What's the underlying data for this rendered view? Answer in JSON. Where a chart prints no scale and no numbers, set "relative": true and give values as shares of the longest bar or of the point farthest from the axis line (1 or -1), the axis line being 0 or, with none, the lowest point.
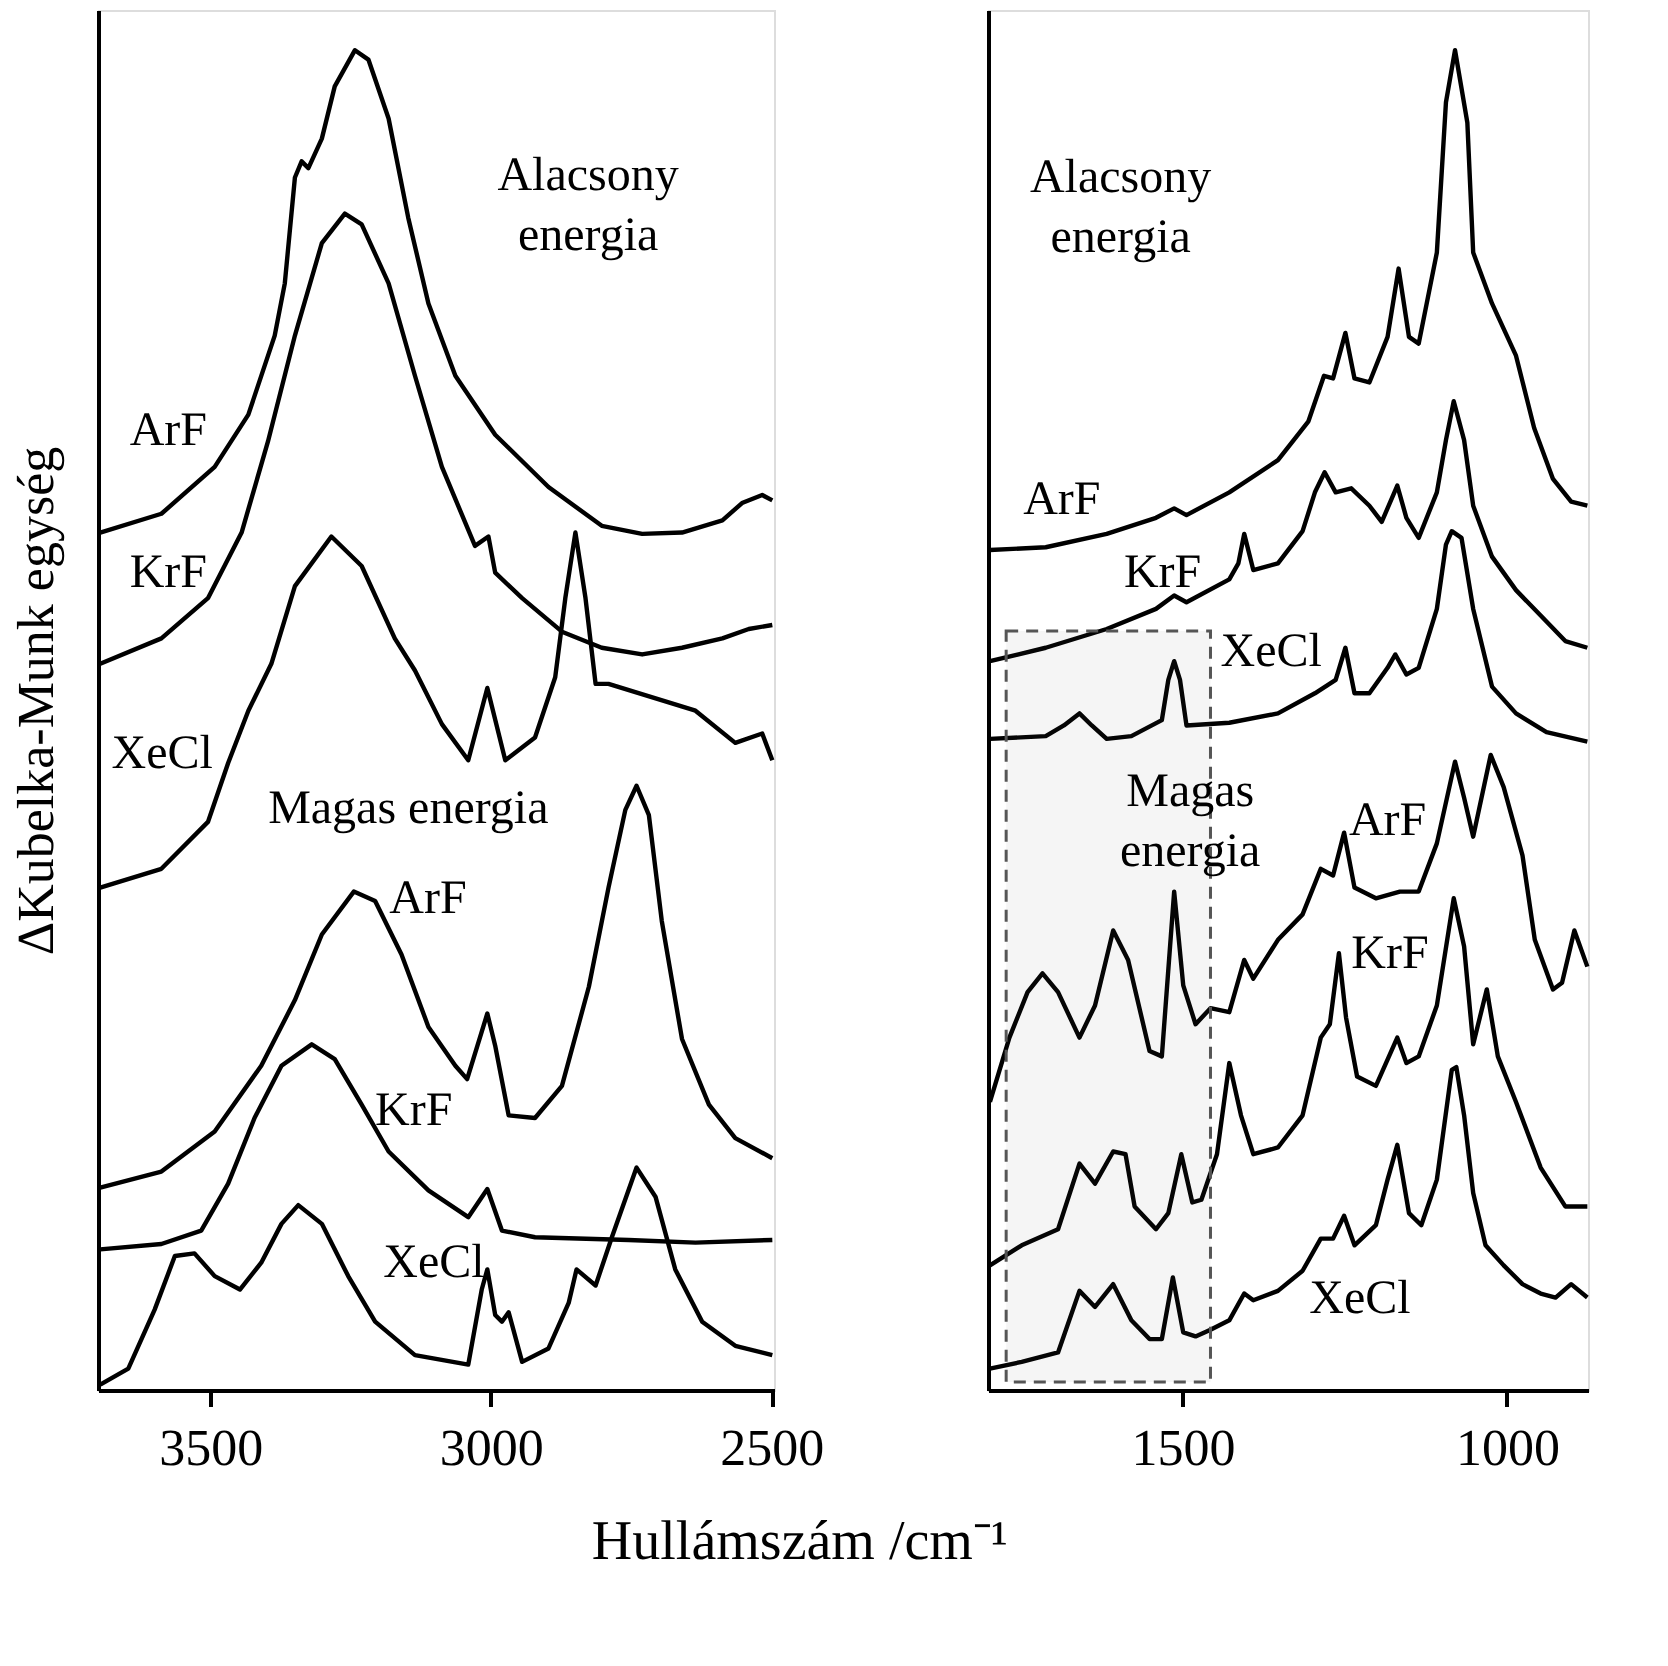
{
  "chart_data": [
    {
      "type": "line",
      "relative": true,
      "tick_labels": "x",
      "ylabel": "ΔKubelka-Munk egység",
      "xlabel": "Hullámszám /cm⁻¹",
      "xlim": [
        3700,
        2495
      ],
      "xticks": [
        3500,
        3000,
        2500
      ],
      "grid": false,
      "series": [
        {
          "color": "#000000",
          "x": [
            3696,
            3587,
            3492,
            3432,
            3385,
            3367,
            3349,
            3337,
            3325,
            3301,
            3278,
            3242,
            3218,
            3182,
            3147,
            3111,
            3063,
            2992,
            2897,
            2802,
            2730,
            2659,
            2587,
            2552,
            2516,
            2498
          ],
          "values": [
            0.64,
            0.654,
            0.689,
            0.728,
            0.787,
            0.826,
            0.905,
            0.917,
            0.912,
            0.934,
            0.973,
            1.0,
            0.993,
            0.949,
            0.875,
            0.811,
            0.757,
            0.713,
            0.674,
            0.645,
            0.639,
            0.64,
            0.649,
            0.662,
            0.668,
            0.664
          ]
        },
        {
          "color": "#000000",
          "x": [
            3696,
            3587,
            3504,
            3444,
            3397,
            3349,
            3301,
            3260,
            3230,
            3182,
            3135,
            3087,
            3028,
            3004,
            2992,
            2944,
            2873,
            2802,
            2730,
            2659,
            2587,
            2540,
            2498
          ],
          "values": [
            0.542,
            0.561,
            0.591,
            0.64,
            0.708,
            0.787,
            0.856,
            0.878,
            0.87,
            0.826,
            0.757,
            0.689,
            0.63,
            0.637,
            0.61,
            0.591,
            0.566,
            0.554,
            0.549,
            0.554,
            0.561,
            0.568,
            0.571
          ]
        },
        {
          "color": "#000000",
          "x": [
            3696,
            3587,
            3504,
            3468,
            3432,
            3391,
            3349,
            3284,
            3230,
            3171,
            3135,
            3087,
            3040,
            3006,
            2974,
            2921,
            2885,
            2867,
            2849,
            2831,
            2813,
            2790,
            2635,
            2564,
            2516,
            2498
          ],
          "values": [
            0.375,
            0.389,
            0.424,
            0.468,
            0.507,
            0.542,
            0.6,
            0.637,
            0.615,
            0.561,
            0.537,
            0.497,
            0.47,
            0.524,
            0.47,
            0.487,
            0.532,
            0.591,
            0.64,
            0.591,
            0.527,
            0.527,
            0.507,
            0.483,
            0.49,
            0.47
          ]
        },
        {
          "color": "#000000",
          "x": [
            3696,
            3587,
            3492,
            3409,
            3349,
            3301,
            3244,
            3206,
            3159,
            3111,
            3063,
            3042,
            3006,
            2992,
            2968,
            2921,
            2873,
            2825,
            2790,
            2760,
            2740,
            2718,
            2695,
            2659,
            2611,
            2564,
            2498
          ],
          "values": [
            0.151,
            0.163,
            0.193,
            0.242,
            0.291,
            0.34,
            0.372,
            0.365,
            0.325,
            0.271,
            0.242,
            0.232,
            0.281,
            0.257,
            0.205,
            0.203,
            0.227,
            0.301,
            0.375,
            0.433,
            0.451,
            0.429,
            0.35,
            0.262,
            0.213,
            0.188,
            0.173
          ]
        },
        {
          "color": "#000000",
          "x": [
            3696,
            3587,
            3516,
            3468,
            3421,
            3373,
            3319,
            3278,
            3230,
            3182,
            3111,
            3040,
            3006,
            2980,
            2921,
            2754,
            2635,
            2498
          ],
          "values": [
            0.105,
            0.109,
            0.119,
            0.154,
            0.203,
            0.242,
            0.258,
            0.247,
            0.213,
            0.178,
            0.149,
            0.129,
            0.15,
            0.119,
            0.114,
            0.112,
            0.11,
            0.112
          ]
        },
        {
          "color": "#000000",
          "x": [
            3696,
            3646,
            3599,
            3563,
            3528,
            3492,
            3447,
            3409,
            3373,
            3343,
            3301,
            3254,
            3206,
            3135,
            3040,
            3016,
            3006,
            2992,
            2980,
            2968,
            2944,
            2897,
            2861,
            2847,
            2813,
            2784,
            2740,
            2706,
            2671,
            2623,
            2564,
            2498
          ],
          "values": [
            0.004,
            0.016,
            0.06,
            0.1,
            0.102,
            0.085,
            0.075,
            0.095,
            0.124,
            0.138,
            0.124,
            0.085,
            0.051,
            0.026,
            0.019,
            0.075,
            0.09,
            0.056,
            0.051,
            0.058,
            0.021,
            0.031,
            0.065,
            0.09,
            0.078,
            0.114,
            0.166,
            0.144,
            0.09,
            0.051,
            0.033,
            0.026
          ]
        }
      ],
      "annotations": [
        "Alacsony\nenergia",
        "ArF",
        "KrF",
        "XeCl",
        "Magas energia",
        "ArF",
        "KrF",
        "XeCl"
      ]
    },
    {
      "type": "line",
      "relative": true,
      "tick_labels": "x",
      "xlim": [
        1800,
        875
      ],
      "xticks": [
        1500,
        1000
      ],
      "grid": false,
      "series": [
        {
          "color": "#000000",
          "x": [
            1797,
            1711,
            1617,
            1541,
            1513,
            1494,
            1428,
            1353,
            1306,
            1282,
            1268,
            1249,
            1235,
            1212,
            1184,
            1167,
            1151,
            1136,
            1108,
            1094,
            1080,
            1061,
            1052,
            1023,
            986,
            958,
            929,
            901,
            876
          ],
          "values": [
            0.627,
            0.629,
            0.639,
            0.651,
            0.658,
            0.653,
            0.67,
            0.694,
            0.723,
            0.757,
            0.755,
            0.789,
            0.755,
            0.752,
            0.786,
            0.837,
            0.786,
            0.781,
            0.849,
            0.961,
            1.0,
            0.946,
            0.849,
            0.811,
            0.772,
            0.718,
            0.68,
            0.663,
            0.66
          ]
        },
        {
          "color": "#000000",
          "x": [
            1797,
            1711,
            1617,
            1541,
            1513,
            1494,
            1428,
            1414,
            1405,
            1391,
            1353,
            1315,
            1296,
            1281,
            1264,
            1240,
            1212,
            1193,
            1169,
            1155,
            1136,
            1108,
            1094,
            1082,
            1066,
            1052,
            1023,
            986,
            948,
            910,
            876
          ],
          "values": [
            0.544,
            0.554,
            0.568,
            0.583,
            0.593,
            0.588,
            0.605,
            0.617,
            0.639,
            0.612,
            0.617,
            0.641,
            0.67,
            0.685,
            0.67,
            0.673,
            0.66,
            0.648,
            0.675,
            0.651,
            0.636,
            0.67,
            0.709,
            0.738,
            0.709,
            0.66,
            0.622,
            0.597,
            0.578,
            0.559,
            0.554
          ]
        },
        {
          "color": "#000000",
          "x": [
            1797,
            1711,
            1683,
            1659,
            1640,
            1617,
            1579,
            1532,
            1522,
            1513,
            1504,
            1494,
            1428,
            1353,
            1296,
            1264,
            1249,
            1235,
            1212,
            1184,
            1172,
            1155,
            1136,
            1108,
            1094,
            1085,
            1070,
            1052,
            1023,
            986,
            939,
            876
          ],
          "values": [
            0.486,
            0.488,
            0.496,
            0.505,
            0.496,
            0.486,
            0.488,
            0.5,
            0.53,
            0.544,
            0.53,
            0.496,
            0.498,
            0.505,
            0.52,
            0.53,
            0.554,
            0.52,
            0.52,
            0.539,
            0.549,
            0.534,
            0.539,
            0.583,
            0.631,
            0.641,
            0.636,
            0.583,
            0.525,
            0.505,
            0.491,
            0.484
          ]
        },
        {
          "color": "#000000",
          "x": [
            1797,
            1767,
            1739,
            1716,
            1692,
            1659,
            1635,
            1607,
            1584,
            1551,
            1532,
            1513,
            1499,
            1480,
            1457,
            1428,
            1405,
            1391,
            1353,
            1315,
            1287,
            1268,
            1251,
            1235,
            1202,
            1165,
            1136,
            1108,
            1080,
            1066,
            1052,
            1025,
            1005,
            976,
            957,
            929,
            915,
            896,
            876
          ],
          "values": [
            0.215,
            0.263,
            0.297,
            0.311,
            0.297,
            0.263,
            0.287,
            0.343,
            0.321,
            0.253,
            0.249,
            0.372,
            0.302,
            0.273,
            0.285,
            0.282,
            0.321,
            0.307,
            0.336,
            0.355,
            0.389,
            0.384,
            0.416,
            0.375,
            0.367,
            0.372,
            0.372,
            0.408,
            0.469,
            0.442,
            0.413,
            0.474,
            0.45,
            0.399,
            0.336,
            0.299,
            0.304,
            0.343,
            0.316
          ]
        },
        {
          "color": "#000000",
          "x": [
            1797,
            1748,
            1692,
            1659,
            1635,
            1607,
            1588,
            1574,
            1541,
            1522,
            1502,
            1485,
            1471,
            1447,
            1428,
            1410,
            1391,
            1353,
            1315,
            1287,
            1273,
            1259,
            1248,
            1231,
            1202,
            1169,
            1155,
            1136,
            1108,
            1082,
            1066,
            1052,
            1031,
            1014,
            986,
            948,
            910,
            876
          ],
          "values": [
            0.093,
            0.108,
            0.12,
            0.169,
            0.154,
            0.178,
            0.176,
            0.137,
            0.12,
            0.132,
            0.176,
            0.14,
            0.142,
            0.176,
            0.244,
            0.205,
            0.176,
            0.181,
            0.205,
            0.263,
            0.273,
            0.326,
            0.278,
            0.234,
            0.227,
            0.263,
            0.244,
            0.249,
            0.287,
            0.367,
            0.331,
            0.258,
            0.299,
            0.249,
            0.215,
            0.166,
            0.137,
            0.137
          ]
        },
        {
          "color": "#000000",
          "x": [
            1797,
            1748,
            1692,
            1659,
            1635,
            1607,
            1579,
            1551,
            1532,
            1515,
            1499,
            1480,
            1457,
            1428,
            1405,
            1391,
            1353,
            1315,
            1287,
            1268,
            1251,
            1235,
            1202,
            1184,
            1169,
            1151,
            1132,
            1108,
            1085,
            1078,
            1066,
            1052,
            1033,
            1005,
            976,
            948,
            925,
            901,
            876
          ],
          "values": [
            0.016,
            0.021,
            0.028,
            0.074,
            0.062,
            0.079,
            0.052,
            0.038,
            0.038,
            0.084,
            0.043,
            0.04,
            0.045,
            0.052,
            0.072,
            0.067,
            0.074,
            0.089,
            0.113,
            0.113,
            0.13,
            0.108,
            0.123,
            0.157,
            0.183,
            0.132,
            0.123,
            0.157,
            0.239,
            0.241,
            0.205,
            0.147,
            0.108,
            0.093,
            0.079,
            0.072,
            0.069,
            0.079,
            0.069
          ]
        }
      ],
      "bands": [
        {
          "axis": "x",
          "from": 1772,
          "to": 1457,
          "color": "#555555"
        }
      ],
      "annotations": [
        "Alacsony\nenergia",
        "ArF",
        "KrF",
        "XeCl",
        "Magas\nenergia",
        "ArF",
        "KrF",
        "XeCl"
      ]
    }
  ]
}
